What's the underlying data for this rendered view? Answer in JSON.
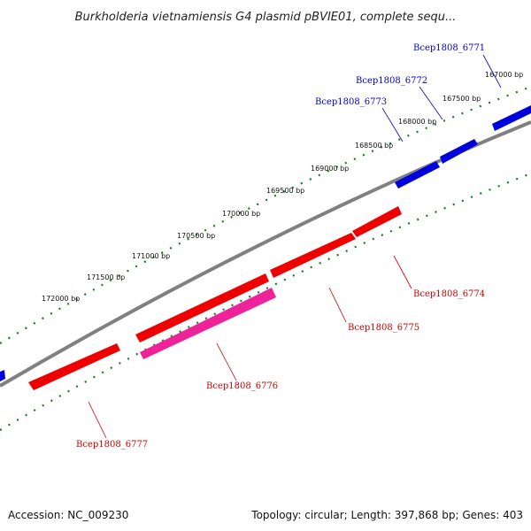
{
  "title": "Burkholderia vietnamiensis G4 plasmid pBVIE01, complete sequ...",
  "footer": {
    "accession": "Accession: NC_009230",
    "summary": "Topology: circular; Length: 397,868 bp; Genes: 403"
  },
  "colors": {
    "backbone": "#808080",
    "tick": "#1a7a1a",
    "forward_gene": "#0000dd",
    "reverse_gene": "#ee0000",
    "highlight_gene": "#ee2299",
    "forward_label": "#0000cc",
    "reverse_label": "#cc0000"
  },
  "ticks": [
    {
      "label": "167000 bp"
    },
    {
      "label": "167500 bp"
    },
    {
      "label": "168000 bp"
    },
    {
      "label": "168500 bp"
    },
    {
      "label": "169000 bp"
    },
    {
      "label": "169500 bp"
    },
    {
      "label": "170000 bp"
    },
    {
      "label": "170500 bp"
    },
    {
      "label": "171000 bp"
    },
    {
      "label": "171500 bp"
    },
    {
      "label": "172000 bp"
    }
  ],
  "genes": [
    {
      "label": "Bcep1808_6771",
      "strand": "forward"
    },
    {
      "label": "Bcep1808_6772",
      "strand": "forward"
    },
    {
      "label": "Bcep1808_6773",
      "strand": "forward"
    },
    {
      "label": "Bcep1808_6774",
      "strand": "reverse"
    },
    {
      "label": "Bcep1808_6775",
      "strand": "reverse"
    },
    {
      "label": "Bcep1808_6776",
      "strand": "reverse",
      "highlight": true
    },
    {
      "label": "Bcep1808_6777",
      "strand": "reverse"
    }
  ]
}
